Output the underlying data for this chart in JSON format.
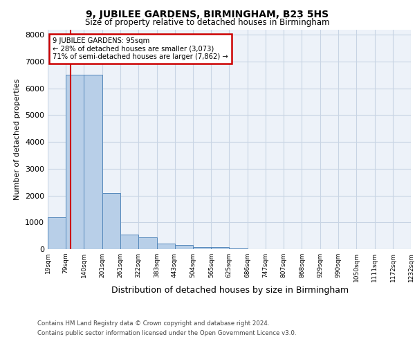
{
  "title1": "9, JUBILEE GARDENS, BIRMINGHAM, B23 5HS",
  "title2": "Size of property relative to detached houses in Birmingham",
  "xlabel": "Distribution of detached houses by size in Birmingham",
  "ylabel": "Number of detached properties",
  "annotation_title": "9 JUBILEE GARDENS: 95sqm",
  "annotation_line1": "← 28% of detached houses are smaller (3,073)",
  "annotation_line2": "71% of semi-detached houses are larger (7,862) →",
  "property_size": 95,
  "footnote1": "Contains HM Land Registry data © Crown copyright and database right 2024.",
  "footnote2": "Contains public sector information licensed under the Open Government Licence v3.0.",
  "bin_edges": [
    19,
    79,
    140,
    201,
    261,
    322,
    383,
    443,
    504,
    565,
    625,
    686,
    747,
    807,
    868,
    929,
    990,
    1050,
    1111,
    1172,
    1232
  ],
  "bin_counts": [
    1200,
    6500,
    6500,
    2100,
    550,
    450,
    200,
    150,
    80,
    80,
    30,
    0,
    0,
    0,
    0,
    0,
    0,
    0,
    0,
    0
  ],
  "bar_color": "#b8cfe8",
  "bar_edge_color": "#5588bb",
  "red_line_color": "#cc0000",
  "annotation_box_color": "#cc0000",
  "grid_color": "#c8d4e4",
  "background_color": "#edf2f9",
  "ylim": [
    0,
    8200
  ],
  "yticks": [
    0,
    1000,
    2000,
    3000,
    4000,
    5000,
    6000,
    7000,
    8000
  ]
}
